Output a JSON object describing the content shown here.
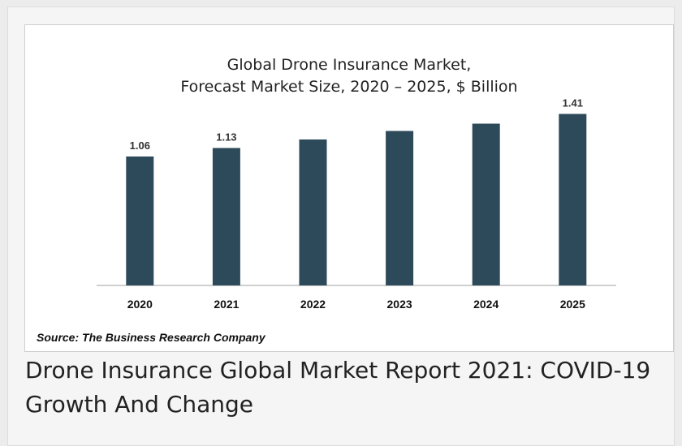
{
  "caption": "Drone Insurance Global Market Report 2021: COVID-19 Growth And Change",
  "source": "Source: The Business Research Company",
  "colors": {
    "bar": "#2d4a5a",
    "axis": "#bfbfbf",
    "background": "#ffffff"
  },
  "chart_data": {
    "type": "bar",
    "title": "Global Drone Insurance Market,",
    "subtitle": "Forecast Market Size, 2020 – 2025, $ Billion",
    "categories": [
      "2020",
      "2021",
      "2022",
      "2023",
      "2024",
      "2025"
    ],
    "values": [
      1.06,
      1.13,
      1.2,
      1.27,
      1.33,
      1.41
    ],
    "data_labels": [
      "1.06",
      "1.13",
      "",
      "",
      "",
      "1.41"
    ],
    "ylim": [
      0,
      1.6
    ],
    "grid": false,
    "legend": "none"
  }
}
